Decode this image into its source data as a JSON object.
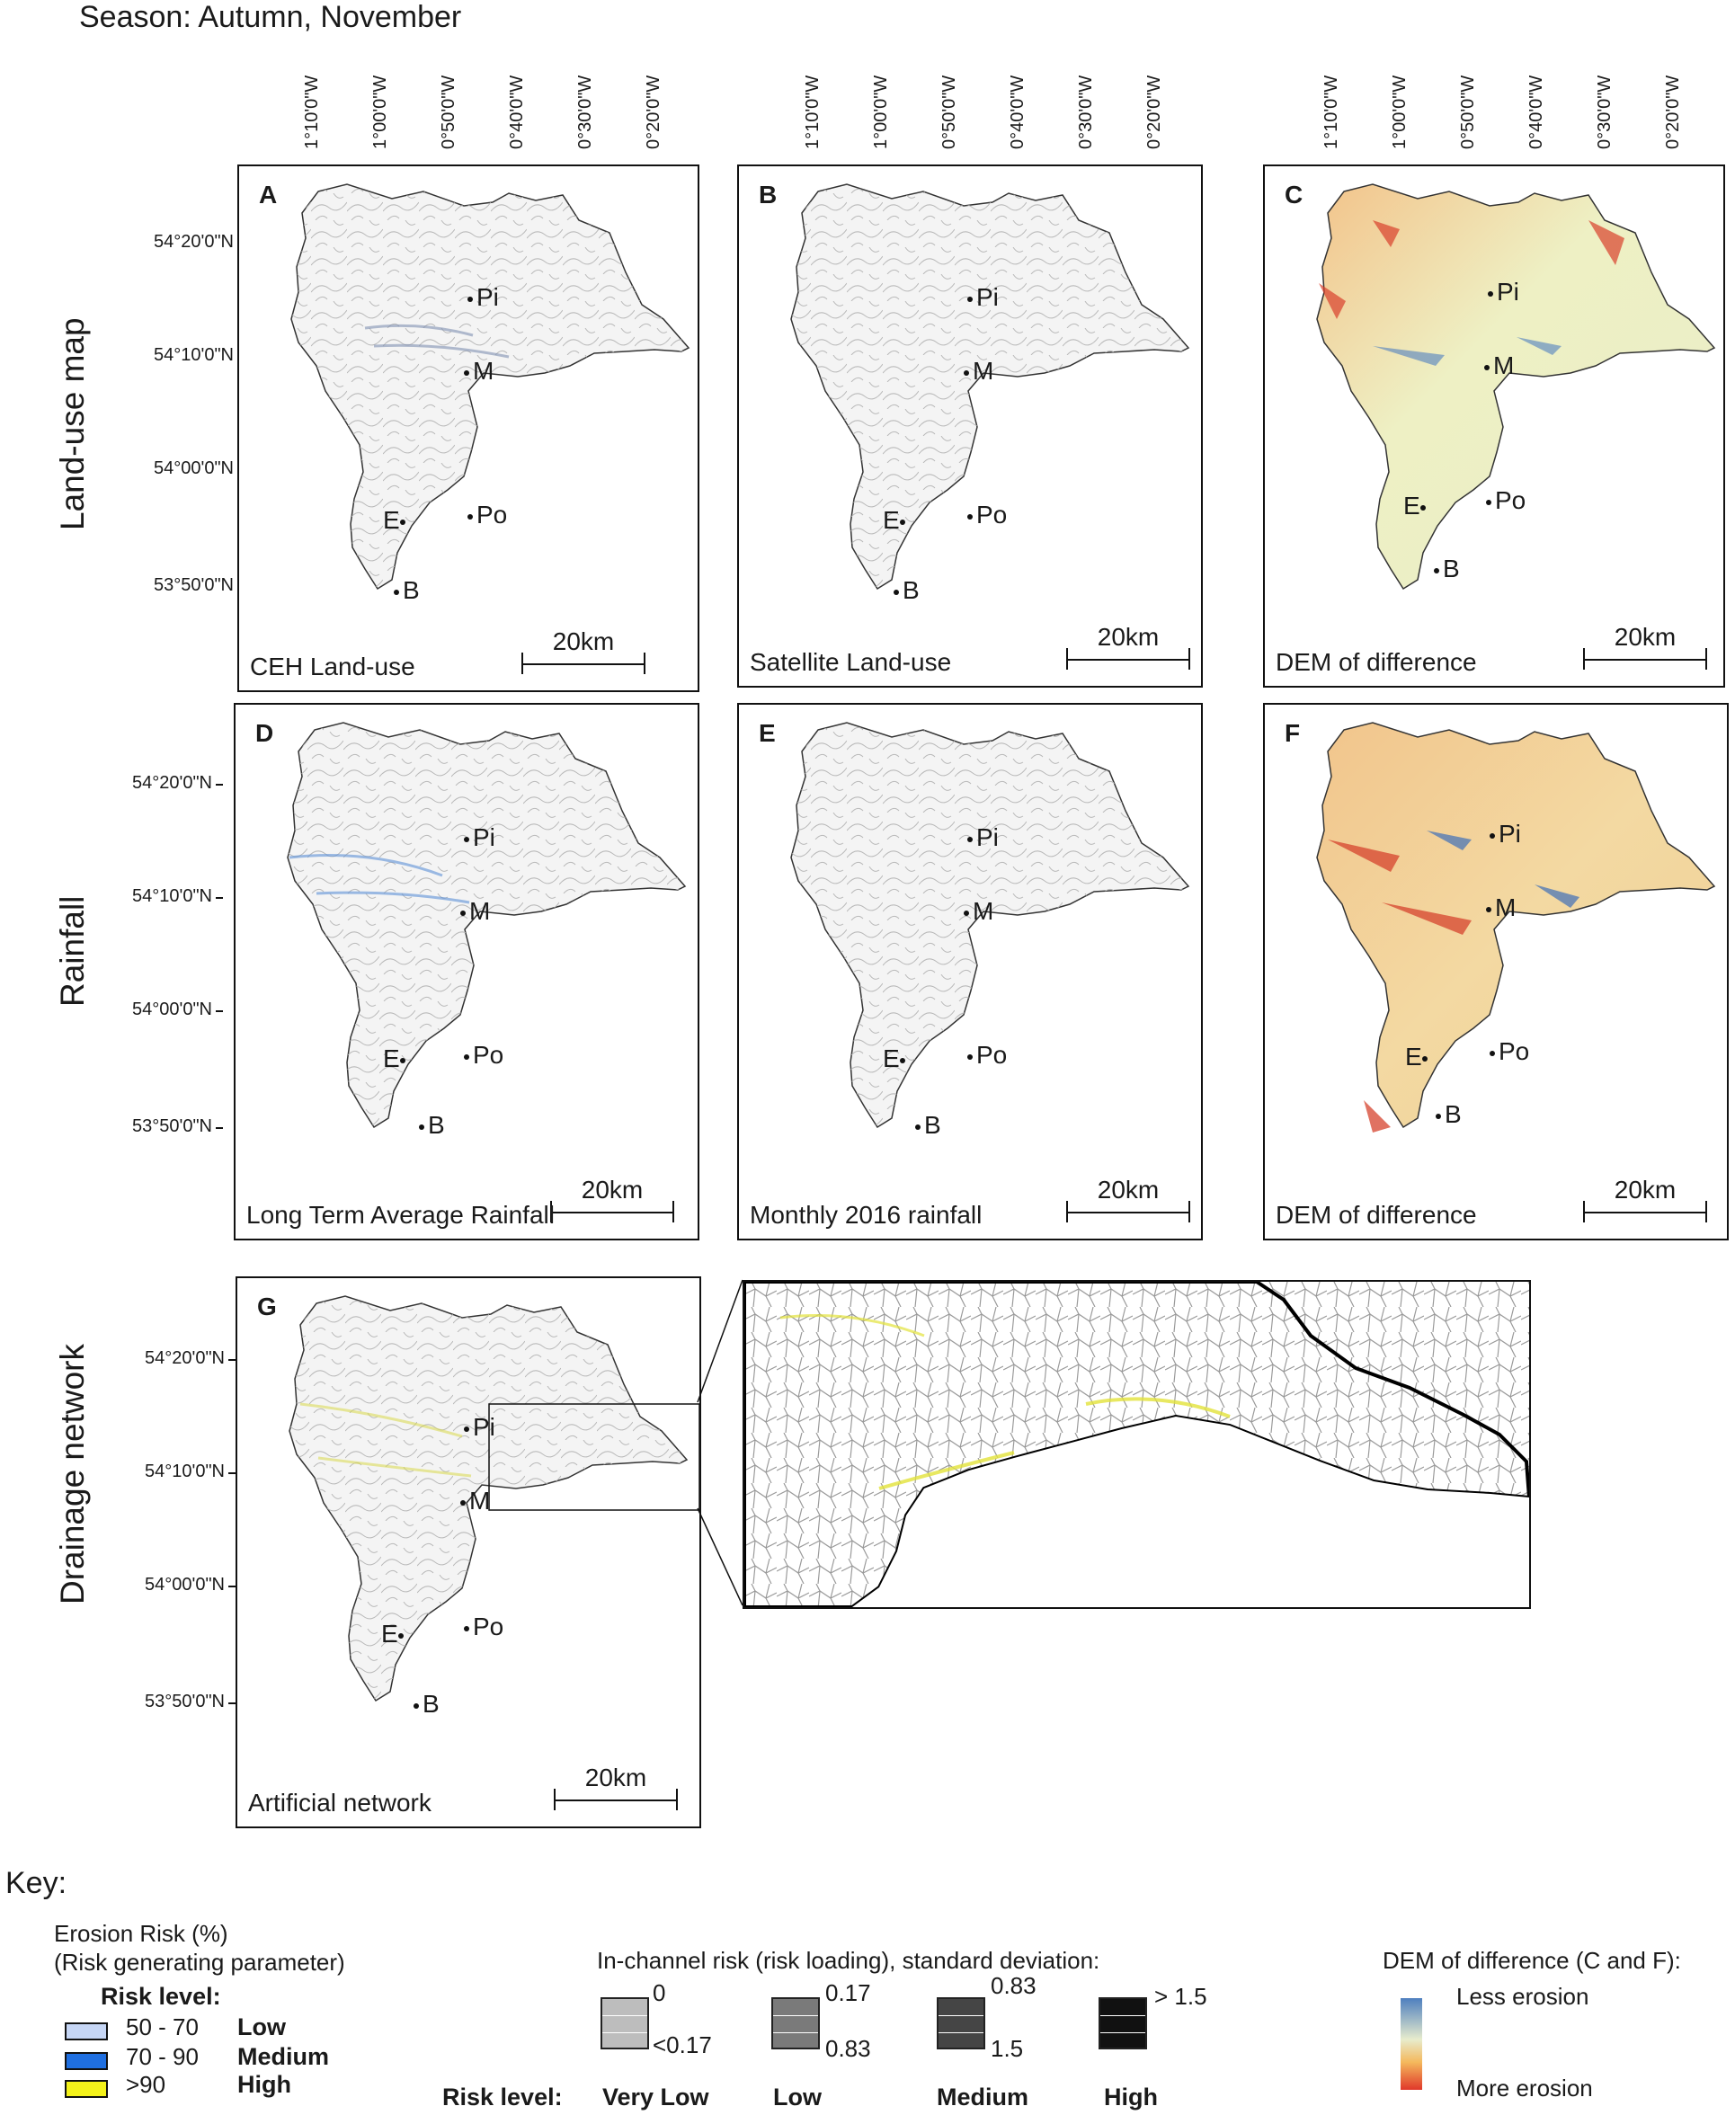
{
  "season": "Season: Autumn, November",
  "row_labels": {
    "row1": "Land-use map",
    "row2": "Rainfall",
    "row3": "Drainage network"
  },
  "lon_labels": [
    "1°10'0\"W",
    "1°00'0\"W",
    "0°50'0\"W",
    "0°40'0\"W",
    "0°30'0\"W",
    "0°20'0\"W"
  ],
  "lat_labels": [
    "54°20'0\"N",
    "54°10'0\"N",
    "54°00'0\"N",
    "53°50'0\"N"
  ],
  "towns": {
    "pi": "Pi",
    "m": "M",
    "po": "Po",
    "e": "E",
    "b": "B"
  },
  "scale_label": "20km",
  "panels": {
    "a": {
      "letter": "A",
      "caption": "CEH Land-use"
    },
    "b": {
      "letter": "B",
      "caption": "Satellite Land-use"
    },
    "c": {
      "letter": "C",
      "caption": "DEM of difference"
    },
    "d": {
      "letter": "D",
      "caption": "Long Term Average Rainfall"
    },
    "e": {
      "letter": "E",
      "caption": "Monthly 2016 rainfall"
    },
    "f": {
      "letter": "F",
      "caption": "DEM of difference"
    },
    "g": {
      "letter": "G",
      "caption": "Artificial network"
    }
  },
  "key": {
    "title": "Key:",
    "erosion_title_1": "Erosion Risk (%)",
    "erosion_title_2": "(Risk generating parameter)",
    "risk_level_label": "Risk level:",
    "erosion_levels": [
      {
        "range": "50 - 70",
        "level": "Low",
        "color": "#c6d6f5"
      },
      {
        "range": "70 - 90",
        "level": "Medium",
        "color": "#1f6fe0"
      },
      {
        "range": ">90",
        "level": "High",
        "color": "#f4f21a"
      }
    ],
    "channel_title": "In-channel risk (risk loading), standard deviation:",
    "channel_levels": [
      {
        "top": "0",
        "bottom": "<0.17",
        "level": "Very Low",
        "color": "#bdbdbd"
      },
      {
        "top": "0.17",
        "bottom": "0.83",
        "level": "Low",
        "color": "#7a7a7a"
      },
      {
        "top": "0.83",
        "bottom": "1.5",
        "level": "Medium",
        "color": "#454545"
      },
      {
        "top": "> 1.5",
        "bottom": "",
        "level": "High",
        "color": "#111111"
      }
    ],
    "dem_title": "DEM of difference (C and F):",
    "dem_less": "Less erosion",
    "dem_more": "More erosion"
  }
}
